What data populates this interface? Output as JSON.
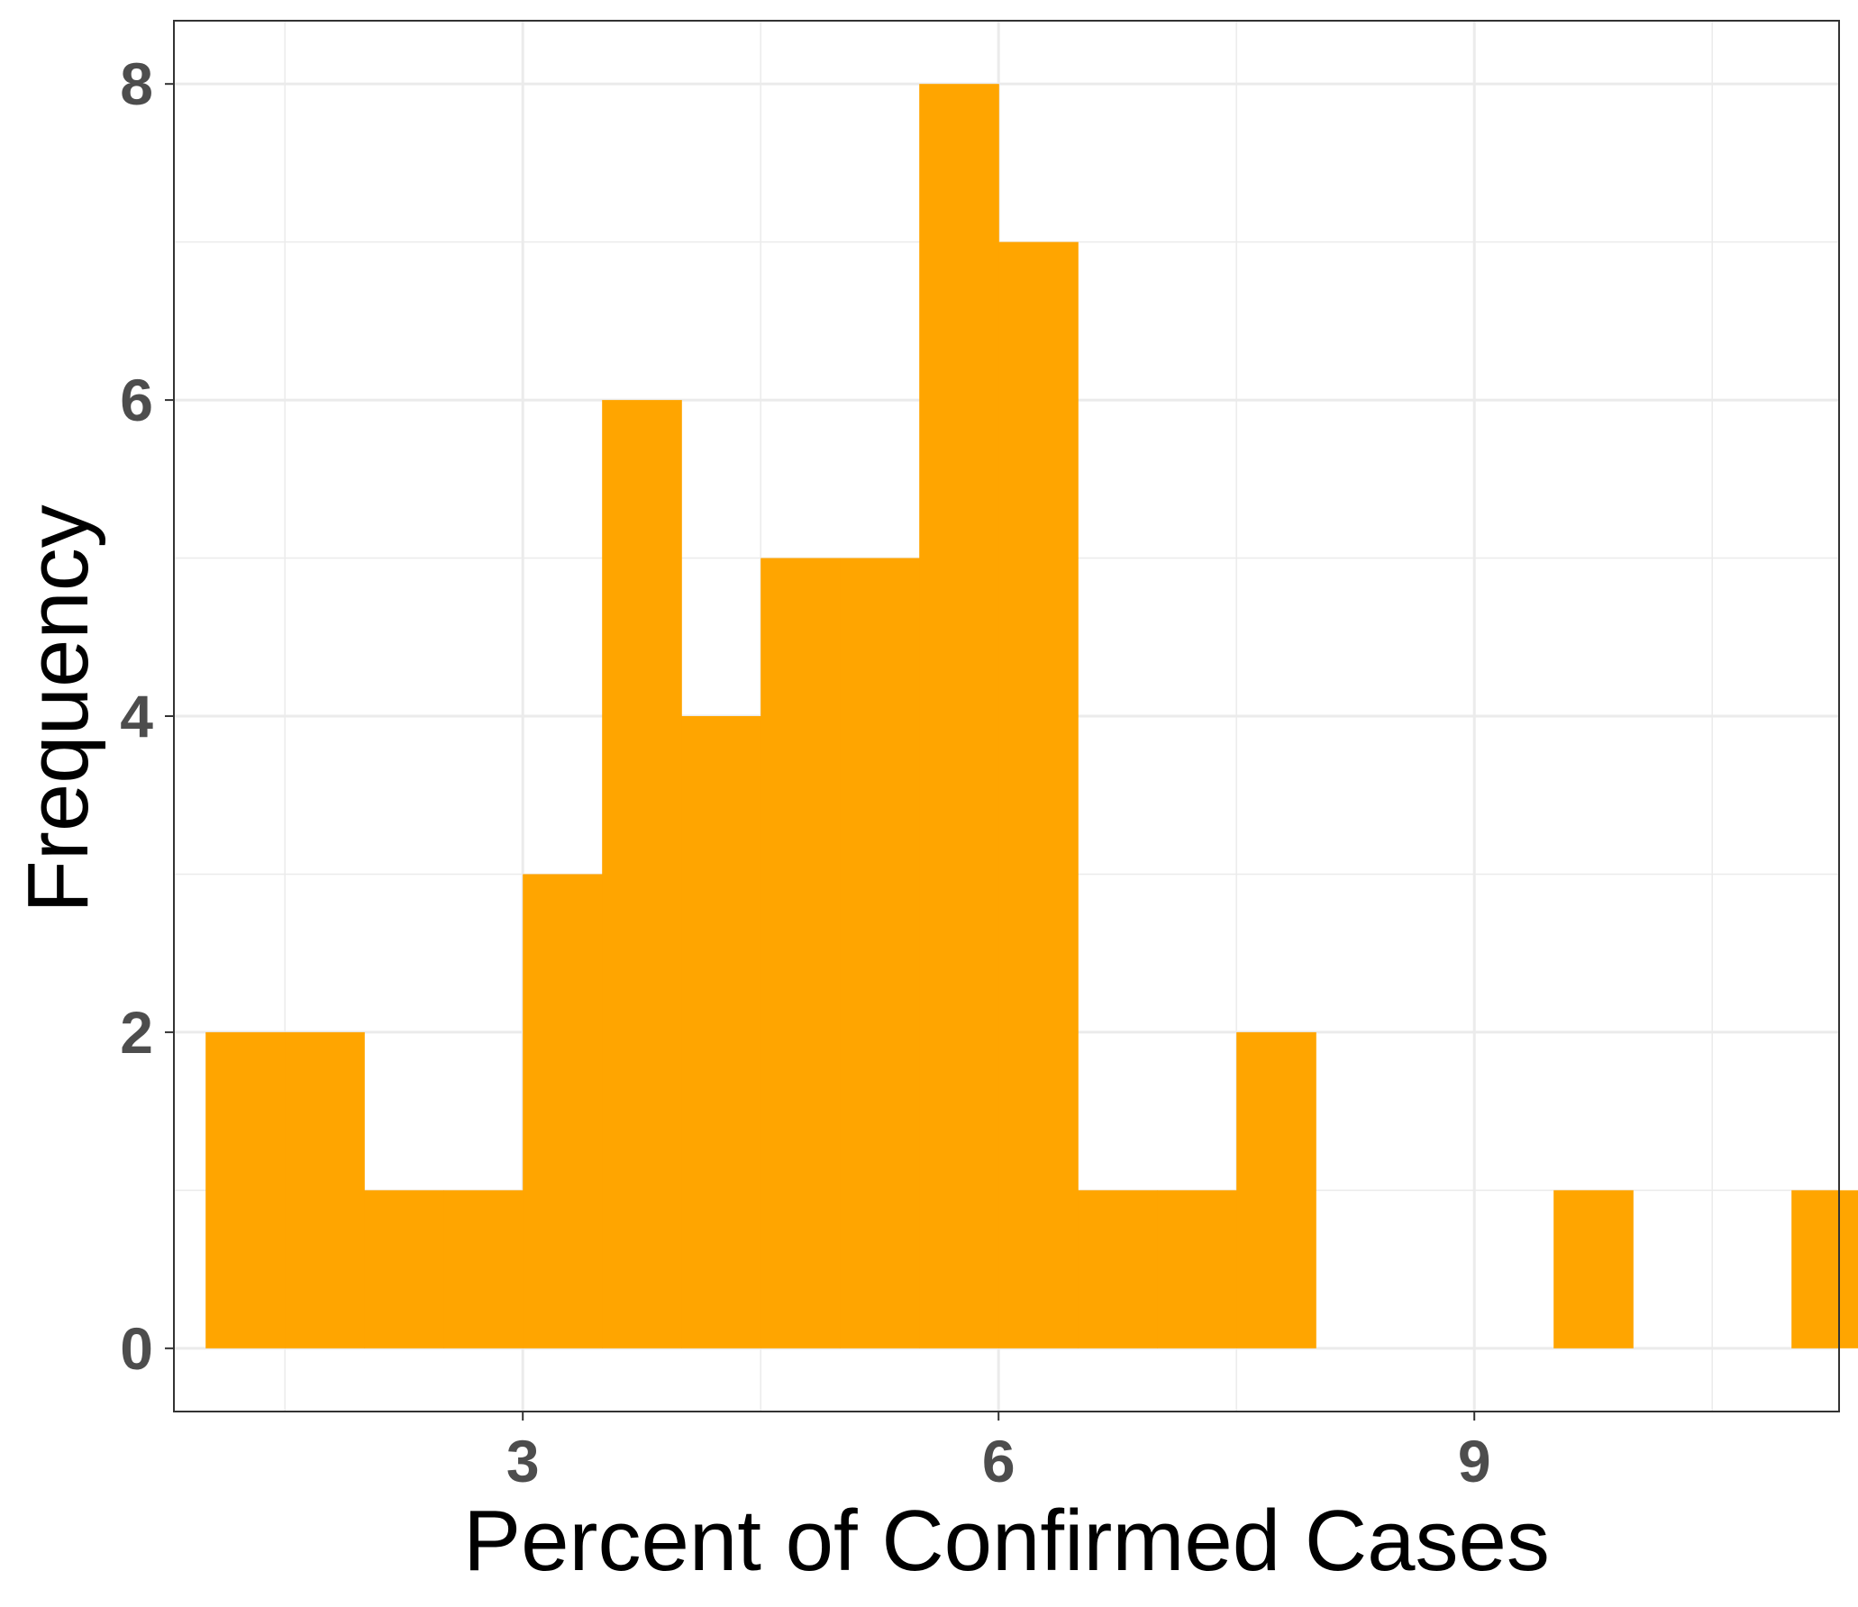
{
  "chart_data": {
    "type": "bar",
    "subtype": "histogram",
    "xlabel": "Percent of Confirmed Cases",
    "ylabel": "Frequency",
    "xlim": [
      0.8,
      11.3
    ],
    "ylim": [
      -0.4,
      8.4
    ],
    "x_ticks": [
      3,
      6,
      9
    ],
    "y_ticks": [
      0,
      2,
      4,
      6,
      8
    ],
    "bin_width": 0.5,
    "bins": [
      {
        "x0": 1.0,
        "x1": 1.5,
        "count": 2
      },
      {
        "x0": 1.5,
        "x1": 2.0,
        "count": 2
      },
      {
        "x0": 2.0,
        "x1": 2.5,
        "count": 1
      },
      {
        "x0": 2.5,
        "x1": 3.0,
        "count": 1
      },
      {
        "x0": 3.0,
        "x1": 3.5,
        "count": 3
      },
      {
        "x0": 3.5,
        "x1": 4.0,
        "count": 6
      },
      {
        "x0": 4.0,
        "x1": 4.5,
        "count": 4
      },
      {
        "x0": 4.5,
        "x1": 5.0,
        "count": 5
      },
      {
        "x0": 5.0,
        "x1": 5.5,
        "count": 5
      },
      {
        "x0": 5.5,
        "x1": 6.0,
        "count": 8
      },
      {
        "x0": 6.0,
        "x1": 6.5,
        "count": 7
      },
      {
        "x0": 6.5,
        "x1": 7.0,
        "count": 1
      },
      {
        "x0": 7.0,
        "x1": 7.5,
        "count": 1
      },
      {
        "x0": 7.5,
        "x1": 8.0,
        "count": 2
      },
      {
        "x0": 9.5,
        "x1": 10.0,
        "count": 1
      },
      {
        "x0": 11.0,
        "x1": 11.5,
        "count": 1
      }
    ],
    "grid": true,
    "legend": "none",
    "colors": {
      "bar": "#FFA500",
      "grid": "#EBEBEB",
      "panel_border": "#333333",
      "tick_text": "#4D4D4D",
      "title_text": "#000000"
    }
  }
}
